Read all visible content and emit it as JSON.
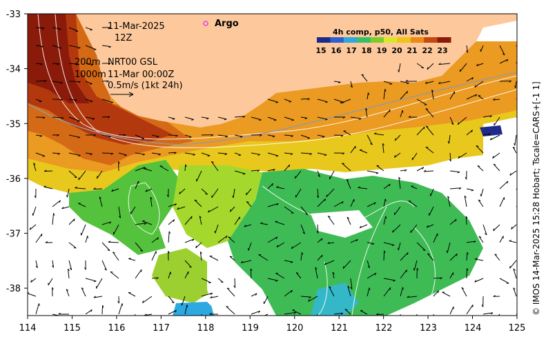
{
  "map": {
    "date": "11-Mar-2025",
    "hour": "12Z",
    "argo_label": "Argo",
    "depth_line_1": "200m",
    "depth_line_2": "1000m",
    "product": "NRT00 GSL",
    "product_time": "11-Mar 00:00Z",
    "scale_label": "0.5m/s (1kt 24h)",
    "credit": "© IMOS 14-Mar-2025 15:28 Hobart; Tscale=CARS+[-1 1]",
    "lon_ticks": [
      "114",
      "115",
      "116",
      "117",
      "118",
      "119",
      "120",
      "121",
      "122",
      "123",
      "124",
      "125"
    ],
    "lat_ticks": [
      "-33",
      "-34",
      "-35",
      "-36",
      "-37",
      "-38"
    ],
    "extent": {
      "lon_min": 114,
      "lon_max": 125,
      "lat_min": -38.5,
      "lat_max": -33
    },
    "land_color": "#fdc99c",
    "argo_color": "#e040e0"
  },
  "legend": {
    "title": "4h comp, p50, All Sats",
    "ticks": [
      "15",
      "16",
      "17",
      "18",
      "19",
      "20",
      "21",
      "22",
      "23"
    ],
    "colors": [
      "#1e2a8a",
      "#2f5fd0",
      "#2ea8e0",
      "#34c06a",
      "#7ccc2a",
      "#d8e82a",
      "#f0c414",
      "#ec8a14",
      "#c44a10",
      "#8a1a0a"
    ]
  }
}
